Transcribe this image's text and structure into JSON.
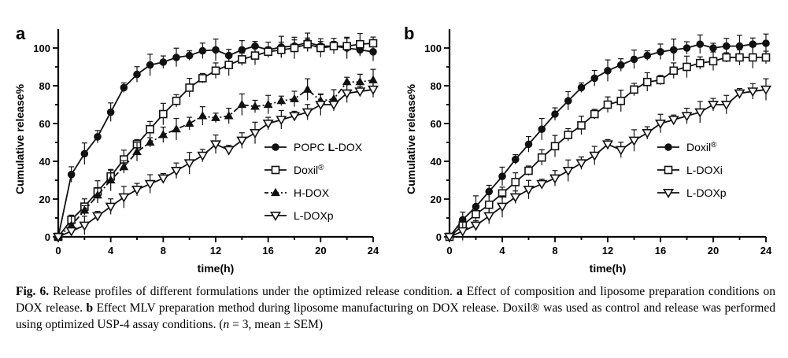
{
  "chart_data": [
    {
      "type": "line",
      "panel": "a",
      "xlabel": "time(h)",
      "ylabel": "Cumulative release%",
      "xlim": [
        0,
        24
      ],
      "ylim": [
        0,
        110
      ],
      "xticks": [
        "0",
        "4",
        "8",
        "12",
        "16",
        "20",
        "24"
      ],
      "yticks": [
        "0",
        "20",
        "40",
        "60",
        "80",
        "100"
      ],
      "legend_position": "right-center",
      "series": [
        {
          "name": "POPC L-DOX",
          "name_main": "POPC ",
          "name_bold": "L",
          "name_rest": "-DOX",
          "marker": "circle-filled",
          "line": "solid",
          "x": [
            0,
            1,
            2,
            3,
            4,
            5,
            6,
            7,
            8,
            9,
            10,
            11,
            12,
            13,
            14,
            15,
            16,
            17,
            18,
            19,
            20,
            21,
            22,
            23,
            24
          ],
          "y": [
            0,
            33,
            44,
            53,
            66,
            79,
            86,
            91,
            92.5,
            95,
            96,
            98.5,
            99,
            96,
            99,
            101,
            99,
            100.5,
            101,
            103,
            101,
            101,
            100,
            99,
            98
          ]
        },
        {
          "name": "Doxil®",
          "name_main": "Doxil",
          "sup": "®",
          "marker": "square-open",
          "line": "solid",
          "x": [
            0,
            1,
            2,
            3,
            4,
            5,
            6,
            7,
            8,
            9,
            10,
            11,
            12,
            13,
            14,
            15,
            16,
            17,
            18,
            19,
            20,
            21,
            22,
            23,
            24
          ],
          "y": [
            0,
            9,
            16,
            24,
            32,
            41,
            49,
            57,
            65,
            72,
            79,
            84,
            88,
            91,
            94,
            96,
            98,
            99,
            100,
            102,
            100,
            101,
            101,
            102,
            102.5
          ]
        },
        {
          "name": "H-DOX",
          "marker": "triangle-up-filled",
          "line": "dashdot",
          "x": [
            0,
            1,
            2,
            3,
            4,
            5,
            6,
            7,
            8,
            9,
            10,
            11,
            12,
            13,
            14,
            15,
            16,
            17,
            18,
            19,
            20,
            21,
            22,
            23,
            24
          ],
          "y": [
            0,
            6,
            14,
            22,
            30,
            37,
            45,
            50,
            54,
            57,
            60,
            64,
            63,
            64,
            70,
            69,
            70,
            72,
            73,
            78,
            72,
            73,
            82,
            82,
            83
          ]
        },
        {
          "name": "L-DOXp",
          "marker": "triangle-down-open",
          "line": "solid",
          "x": [
            0,
            1,
            2,
            3,
            4,
            5,
            6,
            7,
            8,
            9,
            10,
            11,
            12,
            13,
            14,
            15,
            16,
            17,
            18,
            19,
            20,
            21,
            22,
            23,
            24
          ],
          "y": [
            0,
            3,
            6,
            11,
            16,
            21,
            25,
            28,
            31,
            35,
            39,
            43,
            49,
            46,
            51,
            55,
            60,
            62,
            64,
            66,
            70,
            70,
            76,
            77,
            78
          ]
        }
      ]
    },
    {
      "type": "line",
      "panel": "b",
      "xlabel": "time(h)",
      "ylabel": "Cumulative release%",
      "xlim": [
        0,
        24
      ],
      "ylim": [
        0,
        110
      ],
      "xticks": [
        "0",
        "4",
        "8",
        "12",
        "16",
        "20",
        "24"
      ],
      "yticks": [
        "0",
        "20",
        "40",
        "60",
        "80",
        "100"
      ],
      "legend_position": "right-center",
      "series": [
        {
          "name": "Doxil®",
          "name_main": "Doxil",
          "sup": "®",
          "marker": "circle-filled",
          "line": "solid",
          "x": [
            0,
            1,
            2,
            3,
            4,
            5,
            6,
            7,
            8,
            9,
            10,
            11,
            12,
            13,
            14,
            15,
            16,
            17,
            18,
            19,
            20,
            21,
            22,
            23,
            24
          ],
          "y": [
            0,
            9,
            16,
            24,
            32,
            41,
            49,
            57,
            65,
            72,
            79,
            84,
            88,
            91,
            94,
            96,
            98,
            99,
            100,
            102,
            100,
            101,
            101,
            102,
            102.5
          ]
        },
        {
          "name": "L-DOXi",
          "marker": "square-open",
          "line": "solid",
          "x": [
            0,
            1,
            2,
            3,
            4,
            5,
            6,
            7,
            8,
            9,
            10,
            11,
            12,
            13,
            14,
            15,
            16,
            17,
            18,
            19,
            20,
            21,
            22,
            23,
            24
          ],
          "y": [
            0,
            6,
            12,
            17,
            23,
            29,
            35,
            42,
            48,
            54,
            59,
            65,
            70,
            72,
            78,
            82,
            83,
            88,
            90,
            92,
            93,
            95,
            95,
            95,
            95
          ]
        },
        {
          "name": "L-DOXp",
          "marker": "triangle-down-open",
          "line": "solid",
          "x": [
            0,
            1,
            2,
            3,
            4,
            5,
            6,
            7,
            8,
            9,
            10,
            11,
            12,
            13,
            14,
            15,
            16,
            17,
            18,
            19,
            20,
            21,
            22,
            23,
            24
          ],
          "y": [
            0,
            3,
            6,
            11,
            16,
            21,
            25,
            28,
            31,
            35,
            39,
            43,
            49,
            46,
            51,
            55,
            60,
            62,
            64,
            66,
            70,
            70,
            76,
            77,
            78
          ]
        }
      ]
    }
  ],
  "caption": {
    "label": "Fig. 6.",
    "part1": " Release profiles of different formulations under the optimized release condition. ",
    "a": "a",
    "part2": " Effect of composition and liposome preparation conditions on DOX release. ",
    "b": "b",
    "part3": " Effect MLV preparation method during liposome manufacturing on DOX release. Doxil® was used as control and release was performed using optimized USP-4 assay conditions. (",
    "n": "n",
    "part4": " = 3, mean ± SEM)"
  }
}
